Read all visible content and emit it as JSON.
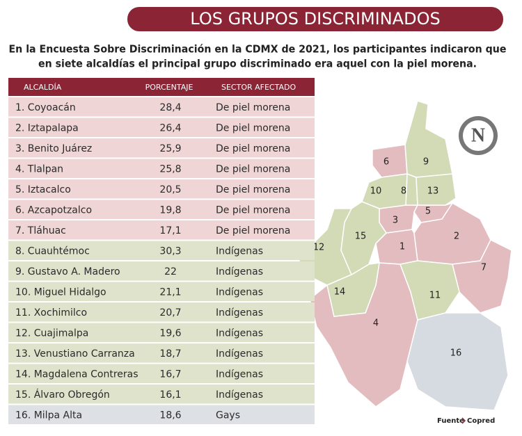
{
  "header": {
    "title": "LOS GRUPOS DISCRIMINADOS",
    "subtitle_lines": [
      "En la Encuesta Sobre Discriminación en la CDMX de 2021, los participantes indicaron que",
      "en siete alcaldías el principal grupo discriminado era aquel con la piel morena."
    ]
  },
  "table": {
    "columns": [
      "ALCALDÍA",
      "PORCENTAJE",
      "SECTOR AFECTADO"
    ],
    "rows": [
      {
        "name": "1. Coyoacán",
        "percent": "28,4",
        "sector": "De piel morena",
        "color": "#efd5d5"
      },
      {
        "name": "2. Iztapalapa",
        "percent": "26,4",
        "sector": "De piel morena",
        "color": "#efd5d5"
      },
      {
        "name": "3. Benito Juárez",
        "percent": "25,9",
        "sector": "De piel morena",
        "color": "#efd5d5"
      },
      {
        "name": "4. Tlalpan",
        "percent": "25,8",
        "sector": "De piel morena",
        "color": "#efd5d5"
      },
      {
        "name": "5. Iztacalco",
        "percent": "20,5",
        "sector": "De piel morena",
        "color": "#efd5d5"
      },
      {
        "name": "6. Azcapotzalco",
        "percent": "19,8",
        "sector": "De piel morena",
        "color": "#efd5d5"
      },
      {
        "name": "7. Tláhuac",
        "percent": "17,1",
        "sector": "De piel morena",
        "color": "#efd5d5"
      },
      {
        "name": "8. Cuauhtémoc",
        "percent": "30,3",
        "sector": "Indígenas",
        "color": "#dfe3cb"
      },
      {
        "name": "9. Gustavo A. Madero",
        "percent": "22",
        "sector": "Indígenas",
        "color": "#dfe3cb"
      },
      {
        "name": "10. Miguel Hidalgo",
        "percent": "21,1",
        "sector": "Indígenas",
        "color": "#dfe3cb"
      },
      {
        "name": "11. Xochimilco",
        "percent": "20,7",
        "sector": "Indígenas",
        "color": "#dfe3cb"
      },
      {
        "name": "12. Cuajimalpa",
        "percent": "19,6",
        "sector": "Indígenas",
        "color": "#dfe3cb"
      },
      {
        "name": "13. Venustiano Carranza",
        "percent": "18,7",
        "sector": "Indígenas",
        "color": "#dfe3cb"
      },
      {
        "name": "14. Magdalena Contreras",
        "percent": "16,7",
        "sector": "Indígenas",
        "color": "#dfe3cb"
      },
      {
        "name": "15. Álvaro Obregón",
        "percent": "16,1",
        "sector": "Indígenas",
        "color": "#dfe3cb"
      },
      {
        "name": "16. Milpa Alta",
        "percent": "18,6",
        "sector": "Gays",
        "color": "#dde1e6"
      }
    ]
  },
  "map": {
    "north": "N",
    "regions": [
      {
        "label": "1",
        "color": "#e3bcbf"
      },
      {
        "label": "2",
        "color": "#e3bcbf"
      },
      {
        "label": "3",
        "color": "#e3bcbf"
      },
      {
        "label": "4",
        "color": "#e3bcbf"
      },
      {
        "label": "5",
        "color": "#e3bcbf"
      },
      {
        "label": "6",
        "color": "#e3bcbf"
      },
      {
        "label": "7",
        "color": "#e3bcbf"
      },
      {
        "label": "8",
        "color": "#d3dab6"
      },
      {
        "label": "9",
        "color": "#d3dab6"
      },
      {
        "label": "10",
        "color": "#d3dab6"
      },
      {
        "label": "11",
        "color": "#d3dab6"
      },
      {
        "label": "12",
        "color": "#d3dab6"
      },
      {
        "label": "13",
        "color": "#d3dab6"
      },
      {
        "label": "14",
        "color": "#d3dab6"
      },
      {
        "label": "15",
        "color": "#d3dab6"
      },
      {
        "label": "16",
        "color": "#d6dbe1"
      }
    ]
  },
  "source": {
    "label": "Fuente",
    "name": "Copred"
  }
}
